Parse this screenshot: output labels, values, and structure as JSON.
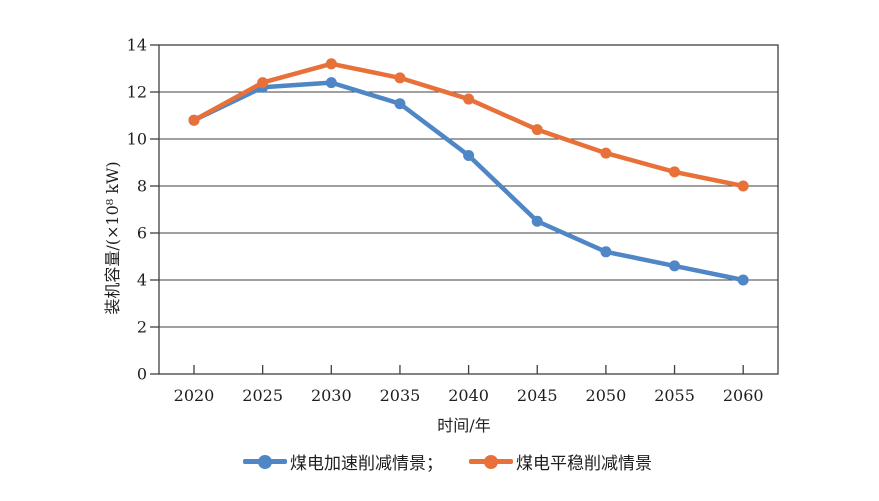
{
  "figure": {
    "background": "#ffffff"
  },
  "axes": {
    "frame_color": "#404040",
    "grid_color": "#404040",
    "text_color": "#1f1f1f",
    "tick_label_font_px": 16
  },
  "chart_data": {
    "type": "line",
    "title": "",
    "categories": [
      "2020",
      "2025",
      "2030",
      "2035",
      "2040",
      "2045",
      "2050",
      "2055",
      "2060"
    ],
    "series": [
      {
        "name": "煤电加速削减情景",
        "color": "#4F86C5",
        "marker": "circle",
        "values": [
          10.8,
          12.2,
          12.4,
          11.5,
          9.3,
          6.5,
          5.2,
          4.6,
          4.0
        ]
      },
      {
        "name": "煤电平稳削减情景",
        "color": "#E8713A",
        "marker": "circle",
        "values": [
          10.8,
          12.4,
          13.2,
          12.6,
          11.7,
          10.4,
          9.4,
          8.6,
          8.0
        ]
      }
    ],
    "xlabel": "时间/年",
    "ylabel": "装机容量/(×10⁸ kW)",
    "ylim": [
      0,
      14
    ],
    "yticks": [
      0,
      2,
      4,
      6,
      8,
      10,
      12,
      14
    ],
    "ytick_step": 2,
    "grid": "horizontal",
    "legend_position": "bottom"
  },
  "legend": {
    "items": [
      {
        "label": "煤电加速削减情景；",
        "color": "#4F86C5"
      },
      {
        "label": "煤电平稳削减情景",
        "color": "#E8713A"
      }
    ]
  }
}
